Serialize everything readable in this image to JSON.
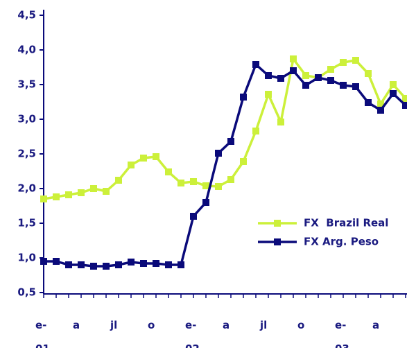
{
  "chart_data": {
    "type": "line",
    "categories": [
      "e-\n01",
      null,
      null,
      "a",
      null,
      null,
      "jl",
      null,
      null,
      "o",
      null,
      null,
      "e-\n02",
      null,
      null,
      "a",
      null,
      null,
      "jl",
      null,
      null,
      "o",
      null,
      null,
      "e-\n03",
      null,
      null,
      "a",
      null,
      null
    ],
    "series": [
      {
        "name": "FX  Brazil Real",
        "color": "#ccf03a",
        "values": [
          1.85,
          1.88,
          1.91,
          1.94,
          2.0,
          1.96,
          2.12,
          2.34,
          2.44,
          2.46,
          2.24,
          2.08,
          2.1,
          2.04,
          2.03,
          2.13,
          2.39,
          2.83,
          3.36,
          2.96,
          3.87,
          3.63,
          3.6,
          3.72,
          3.82,
          3.85,
          3.66,
          3.22,
          3.5,
          3.3
        ]
      },
      {
        "name": "FX Arg. Peso",
        "color": "#0a0a7a",
        "values": [
          0.95,
          0.95,
          0.9,
          0.9,
          0.88,
          0.88,
          0.9,
          0.94,
          0.92,
          0.92,
          0.9,
          0.9,
          1.6,
          1.8,
          2.51,
          2.68,
          3.32,
          3.79,
          3.63,
          3.59,
          3.7,
          3.49,
          3.6,
          3.56,
          3.49,
          3.47,
          3.24,
          3.13,
          3.37,
          3.2
        ]
      }
    ],
    "ylim": [
      0.5,
      4.5
    ],
    "yticks": [
      {
        "value": 0.5,
        "label": "0,5"
      },
      {
        "value": 1.0,
        "label": "1,0"
      },
      {
        "value": 1.5,
        "label": "1,5"
      },
      {
        "value": 2.0,
        "label": "2,0"
      },
      {
        "value": 2.5,
        "label": "2,5"
      },
      {
        "value": 3.0,
        "label": "3,0"
      },
      {
        "value": 3.5,
        "label": "3,5"
      },
      {
        "value": 4.0,
        "label": "4,0"
      },
      {
        "value": 4.5,
        "label": "4,5"
      }
    ],
    "grid": false,
    "legend": "right"
  }
}
